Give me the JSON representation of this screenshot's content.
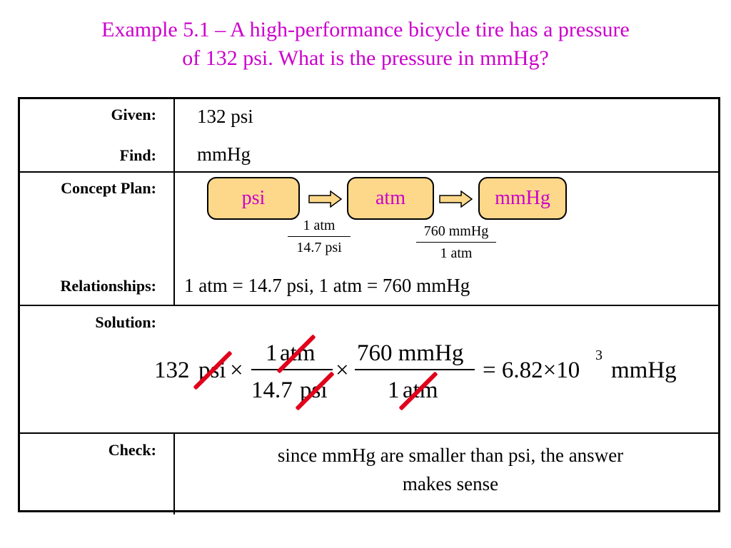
{
  "title": {
    "line1": "Example 5.1 – A high-performance bicycle tire has a pressure",
    "line2": "of 132 psi.  What is the pressure in mmHg?"
  },
  "rows": {
    "given_label": "Given:",
    "given_value": "132 psi",
    "find_label": "Find:",
    "find_value": "mmHg",
    "concept_label": "Concept Plan:",
    "relationships_label": "Relationships:",
    "relationships_value": "1 atm = 14.7 psi, 1 atm = 760 mmHg",
    "solution_label": "Solution:",
    "check_label": "Check:",
    "check_line1": "since mmHg are smaller than psi, the answer",
    "check_line2": "makes sense"
  },
  "concept_plan": {
    "boxes": [
      "psi",
      "atm",
      "mmHg"
    ],
    "factor1_num": "1 atm",
    "factor1_den": "14.7 psi",
    "factor2_num": "760 mmHg",
    "factor2_den": "1 atm"
  },
  "solution": {
    "start_num": "132",
    "start_unit": "psi",
    "times1": "×",
    "f1_num_n": "1",
    "f1_num_u": "atm",
    "f1_den_n": "14.7",
    "f1_den_u": "psi",
    "times2": "×",
    "f2_num": "760 mmHg",
    "f2_den_n": "1",
    "f2_den_u": "atm",
    "result": "= 6.82×10",
    "exponent": "3",
    "result_unit": "mmHg"
  },
  "colors": {
    "title": "#cc00cc",
    "box_fill": "#fdd88a",
    "box_text": "#cc00cc",
    "cancel_mark": "#e0001b"
  }
}
